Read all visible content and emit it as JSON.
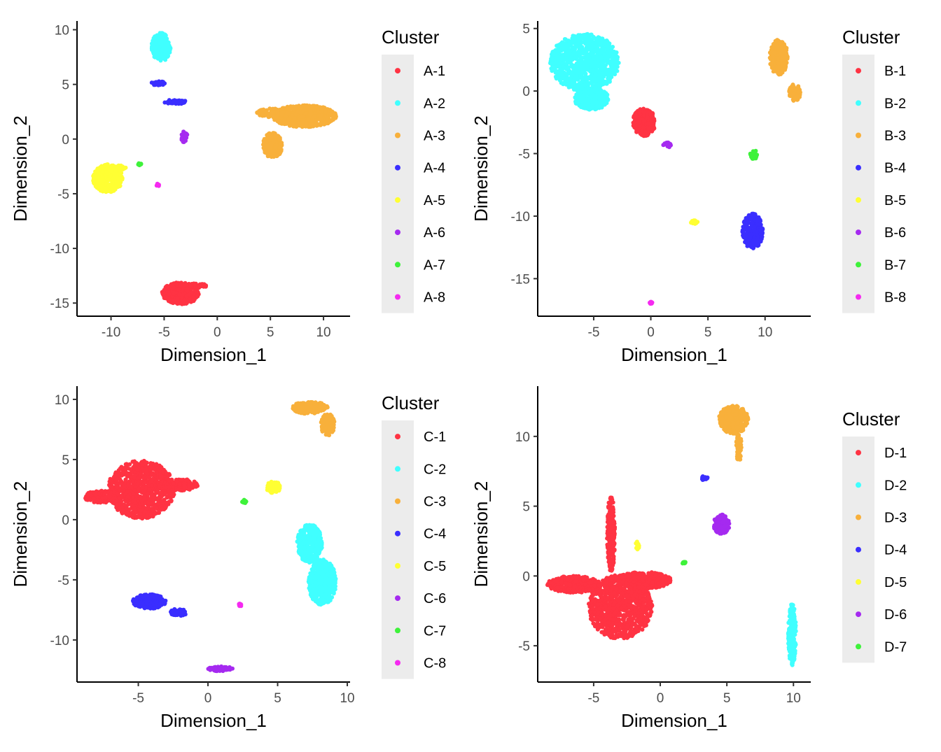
{
  "chart_data": [
    {
      "id": "A",
      "type": "scatter",
      "xlabel": "Dimension_1",
      "ylabel": "Dimension_2",
      "xlim": [
        -13.2,
        12.5
      ],
      "ylim": [
        -16.2,
        10.8
      ],
      "xticks": [
        -10,
        -5,
        0,
        5,
        10
      ],
      "yticks": [
        10,
        5,
        0,
        -5,
        -10,
        -15
      ],
      "legend": {
        "title": "Cluster",
        "position": "right",
        "entries": [
          {
            "label": "A-1",
            "color": "#FF3343"
          },
          {
            "label": "A-2",
            "color": "#40FFFF"
          },
          {
            "label": "A-3",
            "color": "#F8B03B"
          },
          {
            "label": "A-4",
            "color": "#3A2EFF"
          },
          {
            "label": "A-5",
            "color": "#FFFF33"
          },
          {
            "label": "A-6",
            "color": "#A52AF0"
          },
          {
            "label": "A-7",
            "color": "#3EF23A"
          },
          {
            "label": "A-8",
            "color": "#F52AF0"
          }
        ]
      },
      "clusters": [
        {
          "label": "A-1",
          "color": "#FF3343",
          "blobs": [
            {
              "cx": -3.4,
              "cy": -14.1,
              "rx": 1.8,
              "ry": 1.0
            },
            {
              "cx": -1.8,
              "cy": -13.4,
              "rx": 0.9,
              "ry": 0.2
            }
          ]
        },
        {
          "label": "A-2",
          "color": "#40FFFF",
          "blobs": [
            {
              "cx": -5.3,
              "cy": 8.4,
              "rx": 0.9,
              "ry": 1.3
            }
          ]
        },
        {
          "label": "A-3",
          "color": "#F8B03B",
          "blobs": [
            {
              "cx": 8.2,
              "cy": 2.1,
              "rx": 3.0,
              "ry": 1.0
            },
            {
              "cx": 5.2,
              "cy": -0.6,
              "rx": 0.9,
              "ry": 1.2
            },
            {
              "cx": 5.0,
              "cy": 2.4,
              "rx": 1.3,
              "ry": 0.4
            }
          ]
        },
        {
          "label": "A-4",
          "color": "#3A2EFF",
          "blobs": [
            {
              "cx": -5.6,
              "cy": 5.1,
              "rx": 0.7,
              "ry": 0.2
            },
            {
              "cx": -3.9,
              "cy": 3.4,
              "rx": 1.1,
              "ry": 0.2
            }
          ]
        },
        {
          "label": "A-5",
          "color": "#FFFF33",
          "blobs": [
            {
              "cx": -10.3,
              "cy": -3.6,
              "rx": 1.4,
              "ry": 1.3
            },
            {
              "cx": -9.1,
              "cy": -2.6,
              "rx": 0.5,
              "ry": 0.2
            }
          ]
        },
        {
          "label": "A-6",
          "color": "#A52AF0",
          "blobs": [
            {
              "cx": -3.1,
              "cy": 0.2,
              "rx": 0.3,
              "ry": 0.5
            }
          ]
        },
        {
          "label": "A-7",
          "color": "#3EF23A",
          "blobs": [
            {
              "cx": -7.3,
              "cy": -2.3,
              "rx": 0.15,
              "ry": 0.12
            }
          ]
        },
        {
          "label": "A-8",
          "color": "#F52AF0",
          "blobs": [
            {
              "cx": -5.6,
              "cy": -4.2,
              "rx": 0.15,
              "ry": 0.12
            }
          ]
        }
      ]
    },
    {
      "id": "B",
      "type": "scatter",
      "xlabel": "Dimension_1",
      "ylabel": "Dimension_2",
      "xlim": [
        -9.9,
        14.0
      ],
      "ylim": [
        -18.0,
        5.6
      ],
      "xticks": [
        -5,
        0,
        5,
        10
      ],
      "yticks": [
        5,
        0,
        -5,
        -10,
        -15
      ],
      "legend": {
        "title": "Cluster",
        "position": "right",
        "entries": [
          {
            "label": "B-1",
            "color": "#FF3343"
          },
          {
            "label": "B-2",
            "color": "#40FFFF"
          },
          {
            "label": "B-3",
            "color": "#F8B03B"
          },
          {
            "label": "B-4",
            "color": "#3A2EFF"
          },
          {
            "label": "B-5",
            "color": "#FFFF33"
          },
          {
            "label": "B-6",
            "color": "#A52AF0"
          },
          {
            "label": "B-7",
            "color": "#3EF23A"
          },
          {
            "label": "B-8",
            "color": "#F52AF0"
          }
        ]
      },
      "clusters": [
        {
          "label": "B-1",
          "color": "#FF3343",
          "blobs": [
            {
              "cx": -0.6,
              "cy": -2.5,
              "rx": 1.0,
              "ry": 1.1
            }
          ]
        },
        {
          "label": "B-2",
          "color": "#40FFFF",
          "blobs": [
            {
              "cx": -5.8,
              "cy": 2.3,
              "rx": 3.0,
              "ry": 2.3
            },
            {
              "cx": -5.2,
              "cy": -0.6,
              "rx": 1.5,
              "ry": 0.9
            }
          ]
        },
        {
          "label": "B-3",
          "color": "#F8B03B",
          "blobs": [
            {
              "cx": 11.2,
              "cy": 2.7,
              "rx": 0.8,
              "ry": 1.4
            },
            {
              "cx": 12.6,
              "cy": -0.1,
              "rx": 0.5,
              "ry": 0.7
            }
          ]
        },
        {
          "label": "B-4",
          "color": "#3A2EFF",
          "blobs": [
            {
              "cx": 8.9,
              "cy": -11.2,
              "rx": 0.9,
              "ry": 1.4
            }
          ]
        },
        {
          "label": "B-5",
          "color": "#FFFF33",
          "blobs": [
            {
              "cx": 3.8,
              "cy": -10.5,
              "rx": 0.3,
              "ry": 0.2
            }
          ]
        },
        {
          "label": "B-6",
          "color": "#A52AF0",
          "blobs": [
            {
              "cx": 1.4,
              "cy": -4.3,
              "rx": 0.35,
              "ry": 0.25
            }
          ]
        },
        {
          "label": "B-7",
          "color": "#3EF23A",
          "blobs": [
            {
              "cx": 9.0,
              "cy": -5.1,
              "rx": 0.3,
              "ry": 0.4
            }
          ]
        },
        {
          "label": "B-8",
          "color": "#F52AF0",
          "blobs": [
            {
              "cx": 0.0,
              "cy": -16.9,
              "rx": 0.12,
              "ry": 0.12
            }
          ]
        }
      ]
    },
    {
      "id": "C",
      "type": "scatter",
      "xlabel": "Dimension_1",
      "ylabel": "Dimension_2",
      "xlim": [
        -9.4,
        10.2
      ],
      "ylim": [
        -13.5,
        11.1
      ],
      "xticks": [
        -5,
        0,
        5,
        10
      ],
      "yticks": [
        10,
        5,
        0,
        -5,
        -10
      ],
      "legend": {
        "title": "Cluster",
        "position": "right",
        "entries": [
          {
            "label": "C-1",
            "color": "#FF3343"
          },
          {
            "label": "C-2",
            "color": "#40FFFF"
          },
          {
            "label": "C-3",
            "color": "#F8B03B"
          },
          {
            "label": "C-4",
            "color": "#3A2EFF"
          },
          {
            "label": "C-5",
            "color": "#FFFF33"
          },
          {
            "label": "C-6",
            "color": "#A52AF0"
          },
          {
            "label": "C-7",
            "color": "#3EF23A"
          },
          {
            "label": "C-8",
            "color": "#F52AF0"
          }
        ]
      },
      "clusters": [
        {
          "label": "C-1",
          "color": "#FF3343",
          "blobs": [
            {
              "cx": -4.8,
              "cy": 2.5,
              "rx": 2.4,
              "ry": 2.4
            },
            {
              "cx": -7.6,
              "cy": 1.9,
              "rx": 1.3,
              "ry": 0.5
            },
            {
              "cx": -2.2,
              "cy": 2.9,
              "rx": 1.5,
              "ry": 0.5
            }
          ]
        },
        {
          "label": "C-2",
          "color": "#40FFFF",
          "blobs": [
            {
              "cx": 8.2,
              "cy": -5.2,
              "rx": 1.0,
              "ry": 1.9
            },
            {
              "cx": 7.3,
              "cy": -2.0,
              "rx": 0.9,
              "ry": 1.6
            }
          ]
        },
        {
          "label": "C-3",
          "color": "#F8B03B",
          "blobs": [
            {
              "cx": 7.3,
              "cy": 9.3,
              "rx": 1.3,
              "ry": 0.5
            },
            {
              "cx": 8.6,
              "cy": 7.9,
              "rx": 0.5,
              "ry": 0.9
            }
          ]
        },
        {
          "label": "C-4",
          "color": "#3A2EFF",
          "blobs": [
            {
              "cx": -4.2,
              "cy": -6.8,
              "rx": 1.2,
              "ry": 0.6
            },
            {
              "cx": -2.1,
              "cy": -7.7,
              "rx": 0.6,
              "ry": 0.3
            }
          ]
        },
        {
          "label": "C-5",
          "color": "#FFFF33",
          "blobs": [
            {
              "cx": 4.7,
              "cy": 2.7,
              "rx": 0.5,
              "ry": 0.5
            }
          ]
        },
        {
          "label": "C-6",
          "color": "#A52AF0",
          "blobs": [
            {
              "cx": 0.9,
              "cy": -12.4,
              "rx": 0.9,
              "ry": 0.2
            }
          ]
        },
        {
          "label": "C-7",
          "color": "#3EF23A",
          "blobs": [
            {
              "cx": 2.6,
              "cy": 1.5,
              "rx": 0.15,
              "ry": 0.15
            }
          ]
        },
        {
          "label": "C-8",
          "color": "#F52AF0",
          "blobs": [
            {
              "cx": 2.3,
              "cy": -7.1,
              "rx": 0.12,
              "ry": 0.12
            }
          ]
        }
      ]
    },
    {
      "id": "D",
      "type": "scatter",
      "xlabel": "Dimension_1",
      "ylabel": "Dimension_2",
      "xlim": [
        -9.2,
        11.3
      ],
      "ylim": [
        -7.6,
        13.6
      ],
      "xticks": [
        -5,
        0,
        5,
        10
      ],
      "yticks": [
        10,
        5,
        0,
        -5
      ],
      "legend": {
        "title": "Cluster",
        "position": "right",
        "entries": [
          {
            "label": "D-1",
            "color": "#FF3343"
          },
          {
            "label": "D-2",
            "color": "#40FFFF"
          },
          {
            "label": "D-3",
            "color": "#F8B03B"
          },
          {
            "label": "D-4",
            "color": "#3A2EFF"
          },
          {
            "label": "D-5",
            "color": "#FFFF33"
          },
          {
            "label": "D-6",
            "color": "#A52AF0"
          },
          {
            "label": "D-7",
            "color": "#3EF23A"
          }
        ]
      },
      "clusters": [
        {
          "label": "D-1",
          "color": "#FF3343",
          "blobs": [
            {
              "cx": -3.0,
              "cy": -2.2,
              "rx": 2.4,
              "ry": 2.3
            },
            {
              "cx": -6.5,
              "cy": -0.6,
              "rx": 2.0,
              "ry": 0.6
            },
            {
              "cx": -1.2,
              "cy": -0.3,
              "rx": 2.0,
              "ry": 0.6
            },
            {
              "cx": -3.7,
              "cy": 3.0,
              "rx": 0.3,
              "ry": 2.7
            }
          ]
        },
        {
          "label": "D-2",
          "color": "#40FFFF",
          "blobs": [
            {
              "cx": 9.9,
              "cy": -4.2,
              "rx": 0.3,
              "ry": 2.2
            }
          ]
        },
        {
          "label": "D-3",
          "color": "#F8B03B",
          "blobs": [
            {
              "cx": 5.5,
              "cy": 11.2,
              "rx": 1.1,
              "ry": 1.0
            },
            {
              "cx": 5.9,
              "cy": 9.2,
              "rx": 0.2,
              "ry": 1.0
            }
          ]
        },
        {
          "label": "D-4",
          "color": "#3A2EFF",
          "blobs": [
            {
              "cx": 3.3,
              "cy": 7.0,
              "rx": 0.3,
              "ry": 0.15
            }
          ]
        },
        {
          "label": "D-5",
          "color": "#FFFF33",
          "blobs": [
            {
              "cx": -1.7,
              "cy": 2.2,
              "rx": 0.15,
              "ry": 0.3
            }
          ]
        },
        {
          "label": "D-6",
          "color": "#A52AF0",
          "blobs": [
            {
              "cx": 4.6,
              "cy": 3.7,
              "rx": 0.6,
              "ry": 0.7
            }
          ]
        },
        {
          "label": "D-7",
          "color": "#3EF23A",
          "blobs": [
            {
              "cx": 1.8,
              "cy": 0.9,
              "rx": 0.15,
              "ry": 0.12
            }
          ]
        }
      ]
    }
  ]
}
